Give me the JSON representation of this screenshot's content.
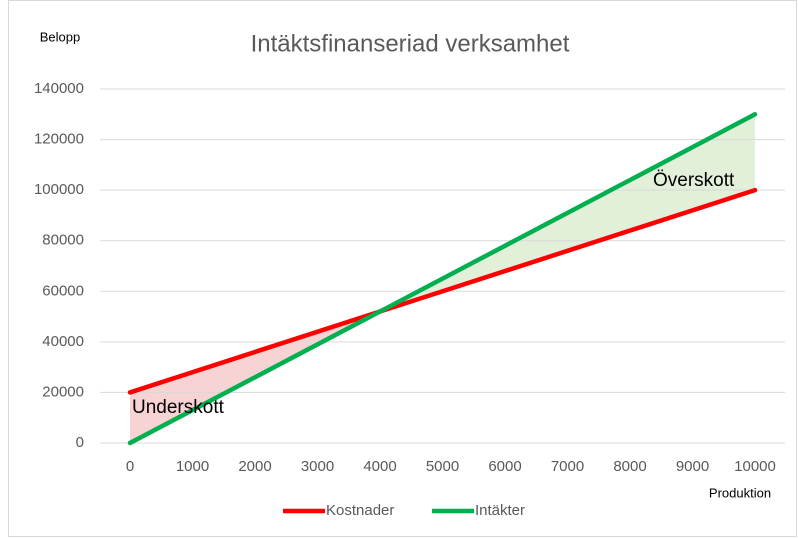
{
  "chart_data": {
    "type": "line",
    "title": "Intäktsfinanseriad verksamhet",
    "y_label": "Belopp",
    "x_label": "Produktion",
    "x": [
      0,
      10000
    ],
    "series": [
      {
        "name": "Kostnader",
        "color": "#ff0000",
        "values": [
          20000,
          100000
        ]
      },
      {
        "name": "Intäkter",
        "color": "#00b050",
        "values": [
          0,
          130000
        ]
      }
    ],
    "annotations": [
      "Underskott",
      "Överskott"
    ],
    "deficit_color": "#f8d3d3",
    "surplus_color": "#e2efd9",
    "xlim": [
      0,
      10000
    ],
    "xticks": [
      0,
      1000,
      2000,
      3000,
      4000,
      5000,
      6000,
      7000,
      8000,
      9000,
      10000
    ],
    "ylim": [
      0,
      140000
    ],
    "yticks": [
      0,
      20000,
      40000,
      60000,
      80000,
      100000,
      120000,
      140000
    ],
    "grid": true,
    "legend": "bottom"
  }
}
